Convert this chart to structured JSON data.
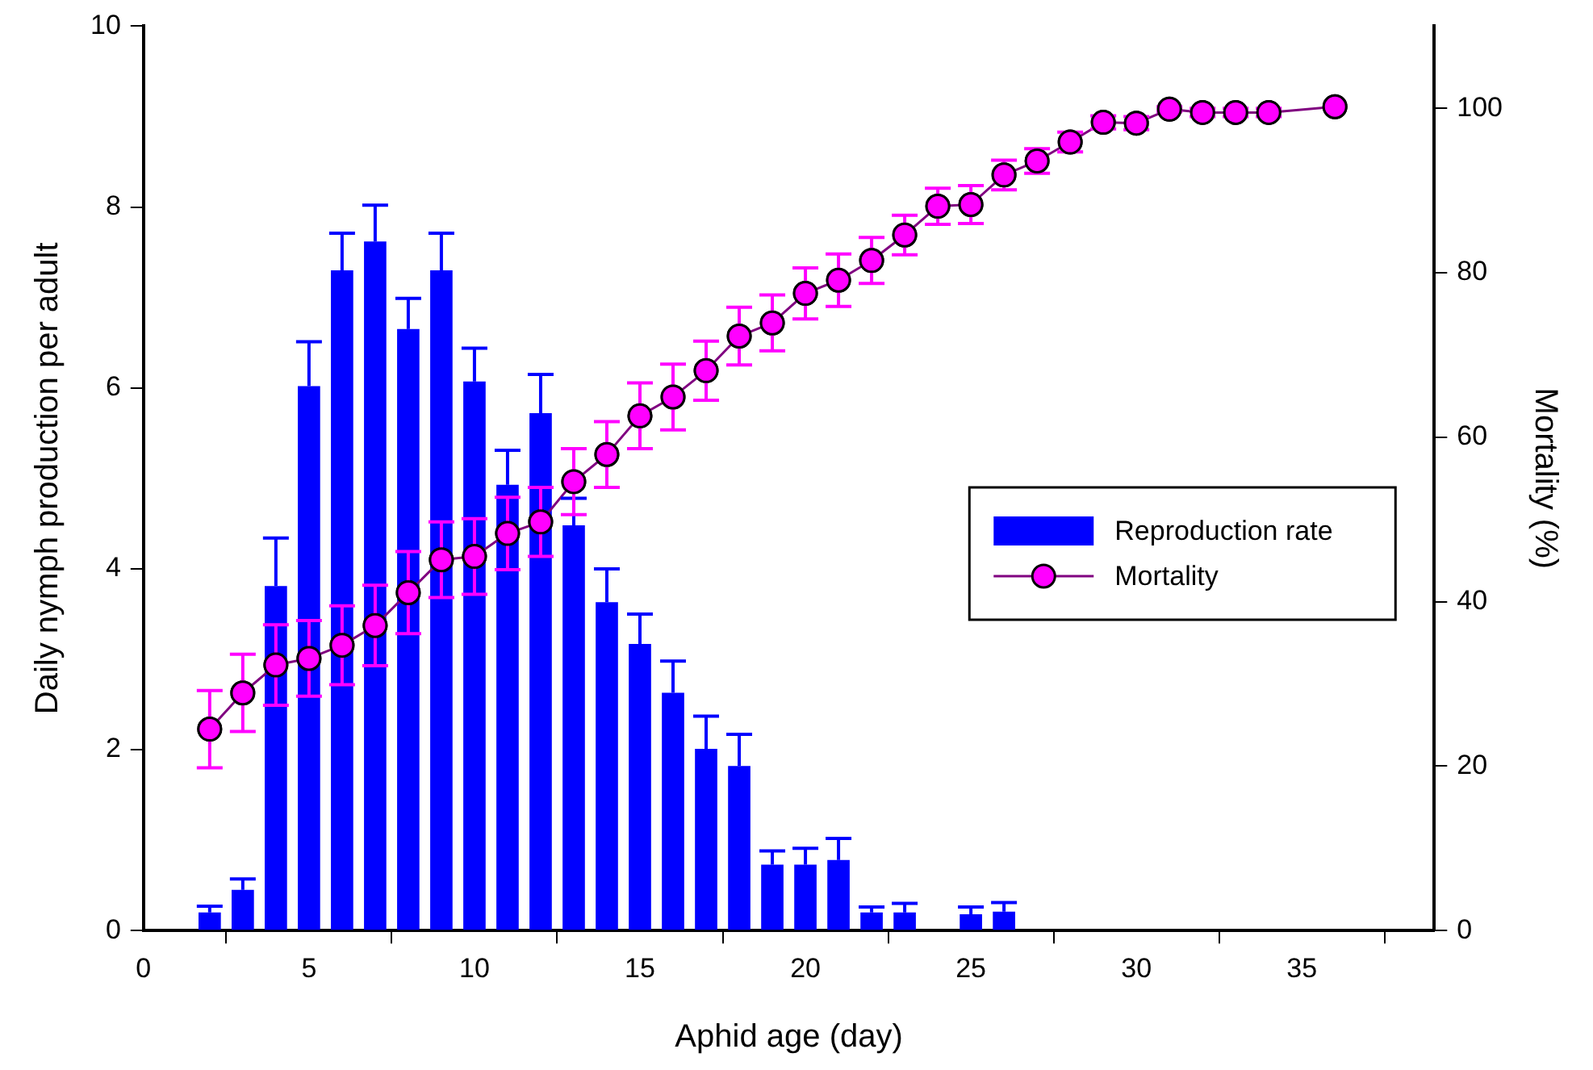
{
  "chart_data": {
    "type": "bar",
    "xlabel": "Aphid age (day)",
    "ylabel": "Daily nymph production per adult",
    "y2label": "Mortality (%)",
    "xlim": [
      0,
      39
    ],
    "xticks": [
      0,
      5,
      10,
      15,
      20,
      25,
      30,
      35
    ],
    "ylim": [
      0,
      10
    ],
    "yticks": [
      0,
      2,
      4,
      6,
      8,
      10
    ],
    "y2lim": [
      0,
      110
    ],
    "y2ticks": [
      0,
      20,
      40,
      60,
      80,
      100
    ],
    "grid": false,
    "legend": "right",
    "series": [
      {
        "name": "Reproduction rate",
        "color": "#0000ff",
        "x": [
          2,
          3,
          4,
          5,
          6,
          7,
          8,
          9,
          10,
          11,
          12,
          13,
          14,
          15,
          16,
          17,
          18,
          19,
          20,
          21,
          22,
          23,
          25,
          26
        ],
        "values": [
          0.2,
          0.45,
          3.81,
          6.02,
          7.3,
          7.62,
          6.65,
          7.3,
          6.07,
          4.93,
          5.72,
          4.48,
          3.63,
          3.17,
          2.63,
          2.01,
          1.82,
          0.73,
          0.73,
          0.78,
          0.2,
          0.2,
          0.18,
          0.21
        ],
        "errors": [
          [
            0.2,
            0.27
          ],
          [
            0.45,
            0.57
          ],
          [
            3.81,
            4.34
          ],
          [
            6.02,
            6.51
          ],
          [
            7.3,
            7.71
          ],
          [
            7.62,
            8.02
          ],
          [
            6.65,
            6.99
          ],
          [
            7.3,
            7.71
          ],
          [
            6.07,
            6.44
          ],
          [
            4.93,
            5.31
          ],
          [
            5.72,
            6.15
          ],
          [
            4.48,
            4.78
          ],
          [
            3.63,
            4.0
          ],
          [
            3.17,
            3.5
          ],
          [
            2.63,
            2.98
          ],
          [
            2.01,
            2.37
          ],
          [
            1.82,
            2.17
          ],
          [
            0.73,
            0.88
          ],
          [
            0.73,
            0.91
          ],
          [
            0.78,
            1.02
          ],
          [
            0.2,
            0.26
          ],
          [
            0.2,
            0.3
          ],
          [
            0.18,
            0.26
          ],
          [
            0.21,
            0.31
          ]
        ]
      },
      {
        "name": "Mortality",
        "type": "line",
        "axis": "y2",
        "color": "#ff00ff",
        "marker": "circle",
        "line_style": "solid",
        "x": [
          2,
          3,
          4,
          5,
          6,
          7,
          8,
          9,
          10,
          11,
          12,
          13,
          14,
          15,
          16,
          17,
          18,
          19,
          20,
          21,
          22,
          23,
          24,
          25,
          26,
          27,
          28,
          29,
          30,
          31,
          32,
          33,
          34,
          36
        ],
        "values": [
          24.5,
          28.9,
          32.3,
          33.1,
          34.7,
          37.1,
          41.1,
          45.1,
          45.5,
          48.3,
          49.7,
          54.6,
          57.9,
          62.6,
          64.9,
          68.1,
          72.3,
          73.9,
          77.5,
          79.1,
          81.5,
          84.6,
          88.1,
          88.3,
          91.9,
          93.6,
          95.9,
          98.3,
          98.2,
          99.9,
          99.5,
          99.5,
          99.5,
          100.2
        ],
        "errors": [
          4.7,
          4.7,
          4.9,
          4.6,
          4.8,
          4.9,
          5,
          4.6,
          4.6,
          4.4,
          4.2,
          4,
          4,
          4,
          4,
          3.6,
          3.5,
          3.4,
          3.1,
          3.2,
          2.8,
          2.4,
          2.2,
          2.3,
          1.8,
          1.5,
          1.2,
          0.8,
          0.8,
          0.3,
          0.5,
          0.5,
          0.5,
          null
        ]
      }
    ]
  }
}
